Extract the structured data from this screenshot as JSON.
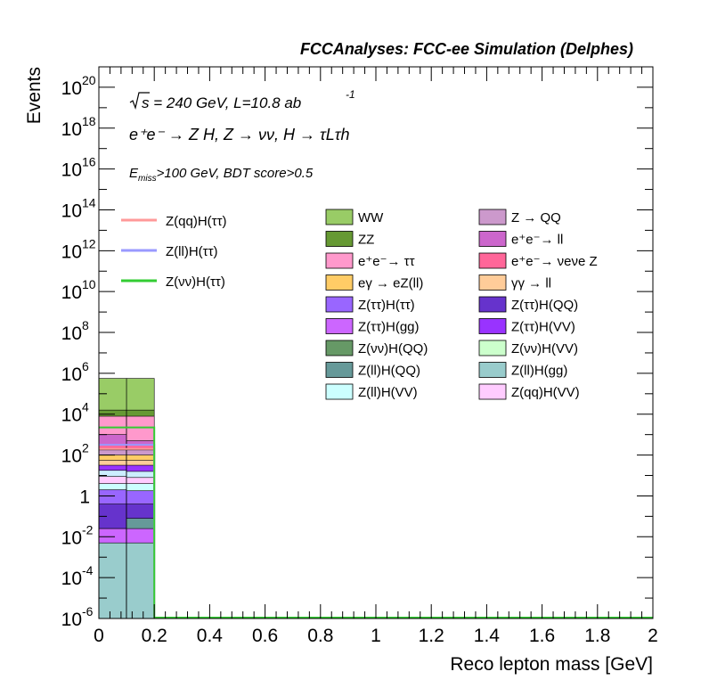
{
  "chart_data": {
    "type": "bar",
    "title": "FCCAnalyses: FCC-ee Simulation (Delphes)",
    "annotations": {
      "sqrt_s": "s = 240 GeV, L=10.8 ab",
      "sqrt_s_exponent": "-1",
      "process": "e⁺e⁻ → Z H, Z → νν, H → τLτh",
      "cut_prefix": "E",
      "cut_sub": "miss",
      "cut_rest": ">100 GeV, BDT score>0.5"
    },
    "xlabel": "Reco lepton mass [GeV]",
    "ylabel": "Events",
    "xlim": [
      0,
      2
    ],
    "ylim_log10": [
      -6,
      21
    ],
    "log_y": true,
    "x_ticks": [
      "0",
      "0.2",
      "0.4",
      "0.6",
      "0.8",
      "1",
      "1.2",
      "1.4",
      "1.6",
      "1.8",
      "2"
    ],
    "y_ticks": [
      {
        "base": "10",
        "exp": "20",
        "log": 20
      },
      {
        "base": "10",
        "exp": "18",
        "log": 18
      },
      {
        "base": "10",
        "exp": "16",
        "log": 16
      },
      {
        "base": "10",
        "exp": "14",
        "log": 14
      },
      {
        "base": "10",
        "exp": "12",
        "log": 12
      },
      {
        "base": "10",
        "exp": "10",
        "log": 10
      },
      {
        "base": "10",
        "exp": "8",
        "log": 8
      },
      {
        "base": "10",
        "exp": "6",
        "log": 6
      },
      {
        "base": "10",
        "exp": "4",
        "log": 4
      },
      {
        "base": "10",
        "exp": "2",
        "log": 2
      },
      {
        "base": "1",
        "exp": "",
        "log": 0
      },
      {
        "base": "10",
        "exp": "-2",
        "log": -2
      },
      {
        "base": "10",
        "exp": "-4",
        "log": -4
      },
      {
        "base": "10",
        "exp": "-6",
        "log": -6
      }
    ],
    "bins": [
      [
        0,
        0.1
      ],
      [
        0.1,
        0.2
      ]
    ],
    "stack_levels_log10": [
      {
        "color": "#99cccc",
        "top": [
          -2.3,
          -2.3
        ]
      },
      {
        "color": "#cc66ff",
        "top": [
          -1.6,
          -1.6
        ]
      },
      {
        "color": "#669999",
        "top": [
          -1.6,
          -1.1
        ]
      },
      {
        "color": "#6633cc",
        "top": [
          -0.4,
          -0.4
        ]
      },
      {
        "color": "#9966ff",
        "top": [
          0.3,
          0.25
        ]
      },
      {
        "color": "#ccffff",
        "top": [
          0.6,
          0.6
        ]
      },
      {
        "color": "#ffccff",
        "top": [
          0.95,
          0.9
        ]
      },
      {
        "color": "#cceeff",
        "top": [
          1.25,
          1.2
        ]
      },
      {
        "color": "#9933ff",
        "top": [
          1.5,
          1.5
        ]
      },
      {
        "color": "#ffcc99",
        "top": [
          1.75,
          1.75
        ]
      },
      {
        "color": "#ffcc66",
        "top": [
          2.0,
          2.0
        ]
      },
      {
        "color": "#cc99cc",
        "top": [
          2.25,
          2.25
        ]
      },
      {
        "color": "#ff6699",
        "top": [
          2.5,
          2.5
        ]
      },
      {
        "color": "#cc66cc",
        "top": [
          3.0,
          2.7
        ]
      },
      {
        "color": "#ff99cc",
        "top": [
          3.9,
          3.9
        ]
      },
      {
        "color": "#669933",
        "top": [
          4.2,
          4.2
        ]
      },
      {
        "color": "#99cc66",
        "top": [
          5.75,
          5.75
        ]
      }
    ],
    "signal_lines": [
      {
        "name": "Z(qq)H(ττ)",
        "color": "#ff9999",
        "top_log10": 2.3
      },
      {
        "name": "Z(ll)H(ττ)",
        "color": "#9999ff",
        "top_log10": 2.5
      },
      {
        "name": "Z(νν)H(ττ)",
        "color": "#33cc33",
        "top_log10": 3.35
      }
    ],
    "legend_background": [
      {
        "name": "WW",
        "color": "#99cc66"
      },
      {
        "name": "Z → QQ",
        "color": "#cc99cc"
      },
      {
        "name": "ZZ",
        "color": "#669933"
      },
      {
        "name": "e⁺e⁻→ ll",
        "color": "#cc66cc"
      },
      {
        "name": "e⁺e⁻→ ττ",
        "color": "#ff99cc"
      },
      {
        "name": "e⁺e⁻→ νeνe Z",
        "color": "#ff6699"
      },
      {
        "name": "eγ → eZ(ll)",
        "color": "#ffcc66"
      },
      {
        "name": "γγ → ll",
        "color": "#ffcc99"
      },
      {
        "name": "Z(ττ)H(ττ)",
        "color": "#9966ff"
      },
      {
        "name": "Z(ττ)H(QQ)",
        "color": "#6633cc"
      },
      {
        "name": "Z(ττ)H(gg)",
        "color": "#cc66ff"
      },
      {
        "name": "Z(ττ)H(VV)",
        "color": "#9933ff"
      },
      {
        "name": "Z(νν)H(QQ)",
        "color": "#669966"
      },
      {
        "name": "Z(νν)H(VV)",
        "color": "#ccffcc"
      },
      {
        "name": "Z(ll)H(QQ)",
        "color": "#669999"
      },
      {
        "name": "Z(ll)H(gg)",
        "color": "#99cccc"
      },
      {
        "name": "Z(ll)H(VV)",
        "color": "#ccffff"
      },
      {
        "name": "Z(qq)H(VV)",
        "color": "#ffccff"
      }
    ]
  }
}
